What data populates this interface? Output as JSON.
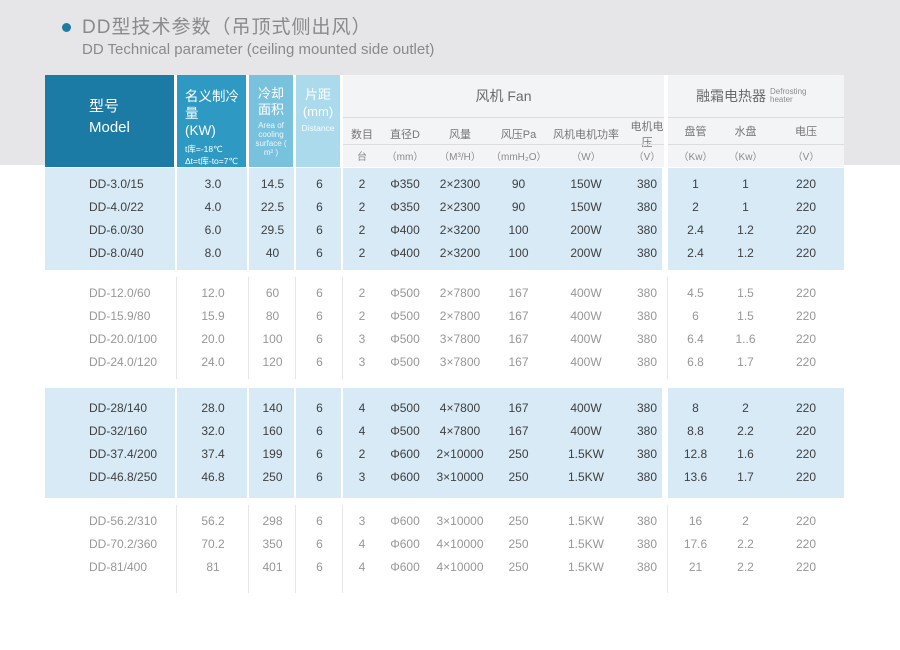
{
  "page": {
    "title_cn": "DD型技术参数（吊顶式侧出风）",
    "title_en": "DD Technical parameter (ceiling mounted side outlet)",
    "accent_color": "#1c7ba5",
    "band_color": "#e6e6e8",
    "row_highlight_color": "#d7eaf6"
  },
  "table": {
    "header": {
      "model": {
        "cn": "型号",
        "en": "Model"
      },
      "capacity": {
        "cn": "名义制冷量",
        "unit": "(KW)",
        "note1": "t库=-18℃",
        "note2": "Δt=t库-to=7℃"
      },
      "area": {
        "cn1": "冷却",
        "cn2": "面积",
        "en": "Area of cooling surface ( m² )"
      },
      "pitch": {
        "cn": "片距",
        "unit": "(mm)",
        "en": "Distance"
      },
      "fan": {
        "title": "风机 Fan",
        "cols": [
          {
            "label": "数目",
            "unit": "台"
          },
          {
            "label": "直径D",
            "unit": "（mm）"
          },
          {
            "label": "风量",
            "unit": "（M³/H）"
          },
          {
            "label": "风压Pa",
            "unit": "（mmH₂O）"
          },
          {
            "label": "风机电机功率",
            "unit": "（W）"
          },
          {
            "label": "电机电压",
            "unit": "（V）"
          }
        ]
      },
      "defrost": {
        "title_cn": "融霜电热器",
        "title_en": "Defrosting heater",
        "cols": [
          {
            "label": "盘管",
            "unit": "（Kw）"
          },
          {
            "label": "水盘",
            "unit": "（Kw）"
          },
          {
            "label": "电压",
            "unit": "（V）"
          }
        ]
      }
    },
    "groups": [
      {
        "shade": "blue",
        "rows": [
          [
            "DD-3.0/15",
            "3.0",
            "14.5",
            "6",
            "2",
            "Φ350",
            "2×2300",
            "90",
            "150W",
            "380",
            "1",
            "1",
            "220"
          ],
          [
            "DD-4.0/22",
            "4.0",
            "22.5",
            "6",
            "2",
            "Φ350",
            "2×2300",
            "90",
            "150W",
            "380",
            "2",
            "1",
            "220"
          ],
          [
            "DD-6.0/30",
            "6.0",
            "29.5",
            "6",
            "2",
            "Φ400",
            "2×3200",
            "100",
            "200W",
            "380",
            "2.4",
            "1.2",
            "220"
          ],
          [
            "DD-8.0/40",
            "8.0",
            "40",
            "6",
            "2",
            "Φ400",
            "2×3200",
            "100",
            "200W",
            "380",
            "2.4",
            "1.2",
            "220"
          ]
        ]
      },
      {
        "shade": "white",
        "rows": [
          [
            "DD-12.0/60",
            "12.0",
            "60",
            "6",
            "2",
            "Φ500",
            "2×7800",
            "167",
            "400W",
            "380",
            "4.5",
            "1.5",
            "220"
          ],
          [
            "DD-15.9/80",
            "15.9",
            "80",
            "6",
            "2",
            "Φ500",
            "2×7800",
            "167",
            "400W",
            "380",
            "6",
            "1.5",
            "220"
          ],
          [
            "DD-20.0/100",
            "20.0",
            "100",
            "6",
            "3",
            "Φ500",
            "3×7800",
            "167",
            "400W",
            "380",
            "6.4",
            "1..6",
            "220"
          ],
          [
            "DD-24.0/120",
            "24.0",
            "120",
            "6",
            "3",
            "Φ500",
            "3×7800",
            "167",
            "400W",
            "380",
            "6.8",
            "1.7",
            "220"
          ]
        ]
      },
      {
        "shade": "blue",
        "rows": [
          [
            "DD-28/140",
            "28.0",
            "140",
            "6",
            "4",
            "Φ500",
            "4×7800",
            "167",
            "400W",
            "380",
            "8",
            "2",
            "220"
          ],
          [
            "DD-32/160",
            "32.0",
            "160",
            "6",
            "4",
            "Φ500",
            "4×7800",
            "167",
            "400W",
            "380",
            "8.8",
            "2.2",
            "220"
          ],
          [
            "DD-37.4/200",
            "37.4",
            "199",
            "6",
            "2",
            "Φ600",
            "2×10000",
            "250",
            "1.5KW",
            "380",
            "12.8",
            "1.6",
            "220"
          ],
          [
            "DD-46.8/250",
            "46.8",
            "250",
            "6",
            "3",
            "Φ600",
            "3×10000",
            "250",
            "1.5KW",
            "380",
            "13.6",
            "1.7",
            "220"
          ]
        ]
      },
      {
        "shade": "white",
        "rows": [
          [
            "DD-56.2/310",
            "56.2",
            "298",
            "6",
            "3",
            "Φ600",
            "3×10000",
            "250",
            "1.5KW",
            "380",
            "16",
            "2",
            "220"
          ],
          [
            "DD-70.2/360",
            "70.2",
            "350",
            "6",
            "4",
            "Φ600",
            "4×10000",
            "250",
            "1.5KW",
            "380",
            "17.6",
            "2.2",
            "220"
          ],
          [
            "DD-81/400",
            "81",
            "401",
            "6",
            "4",
            "Φ600",
            "4×10000",
            "250",
            "1.5KW",
            "380",
            "21",
            "2.2",
            "220"
          ]
        ]
      }
    ]
  }
}
